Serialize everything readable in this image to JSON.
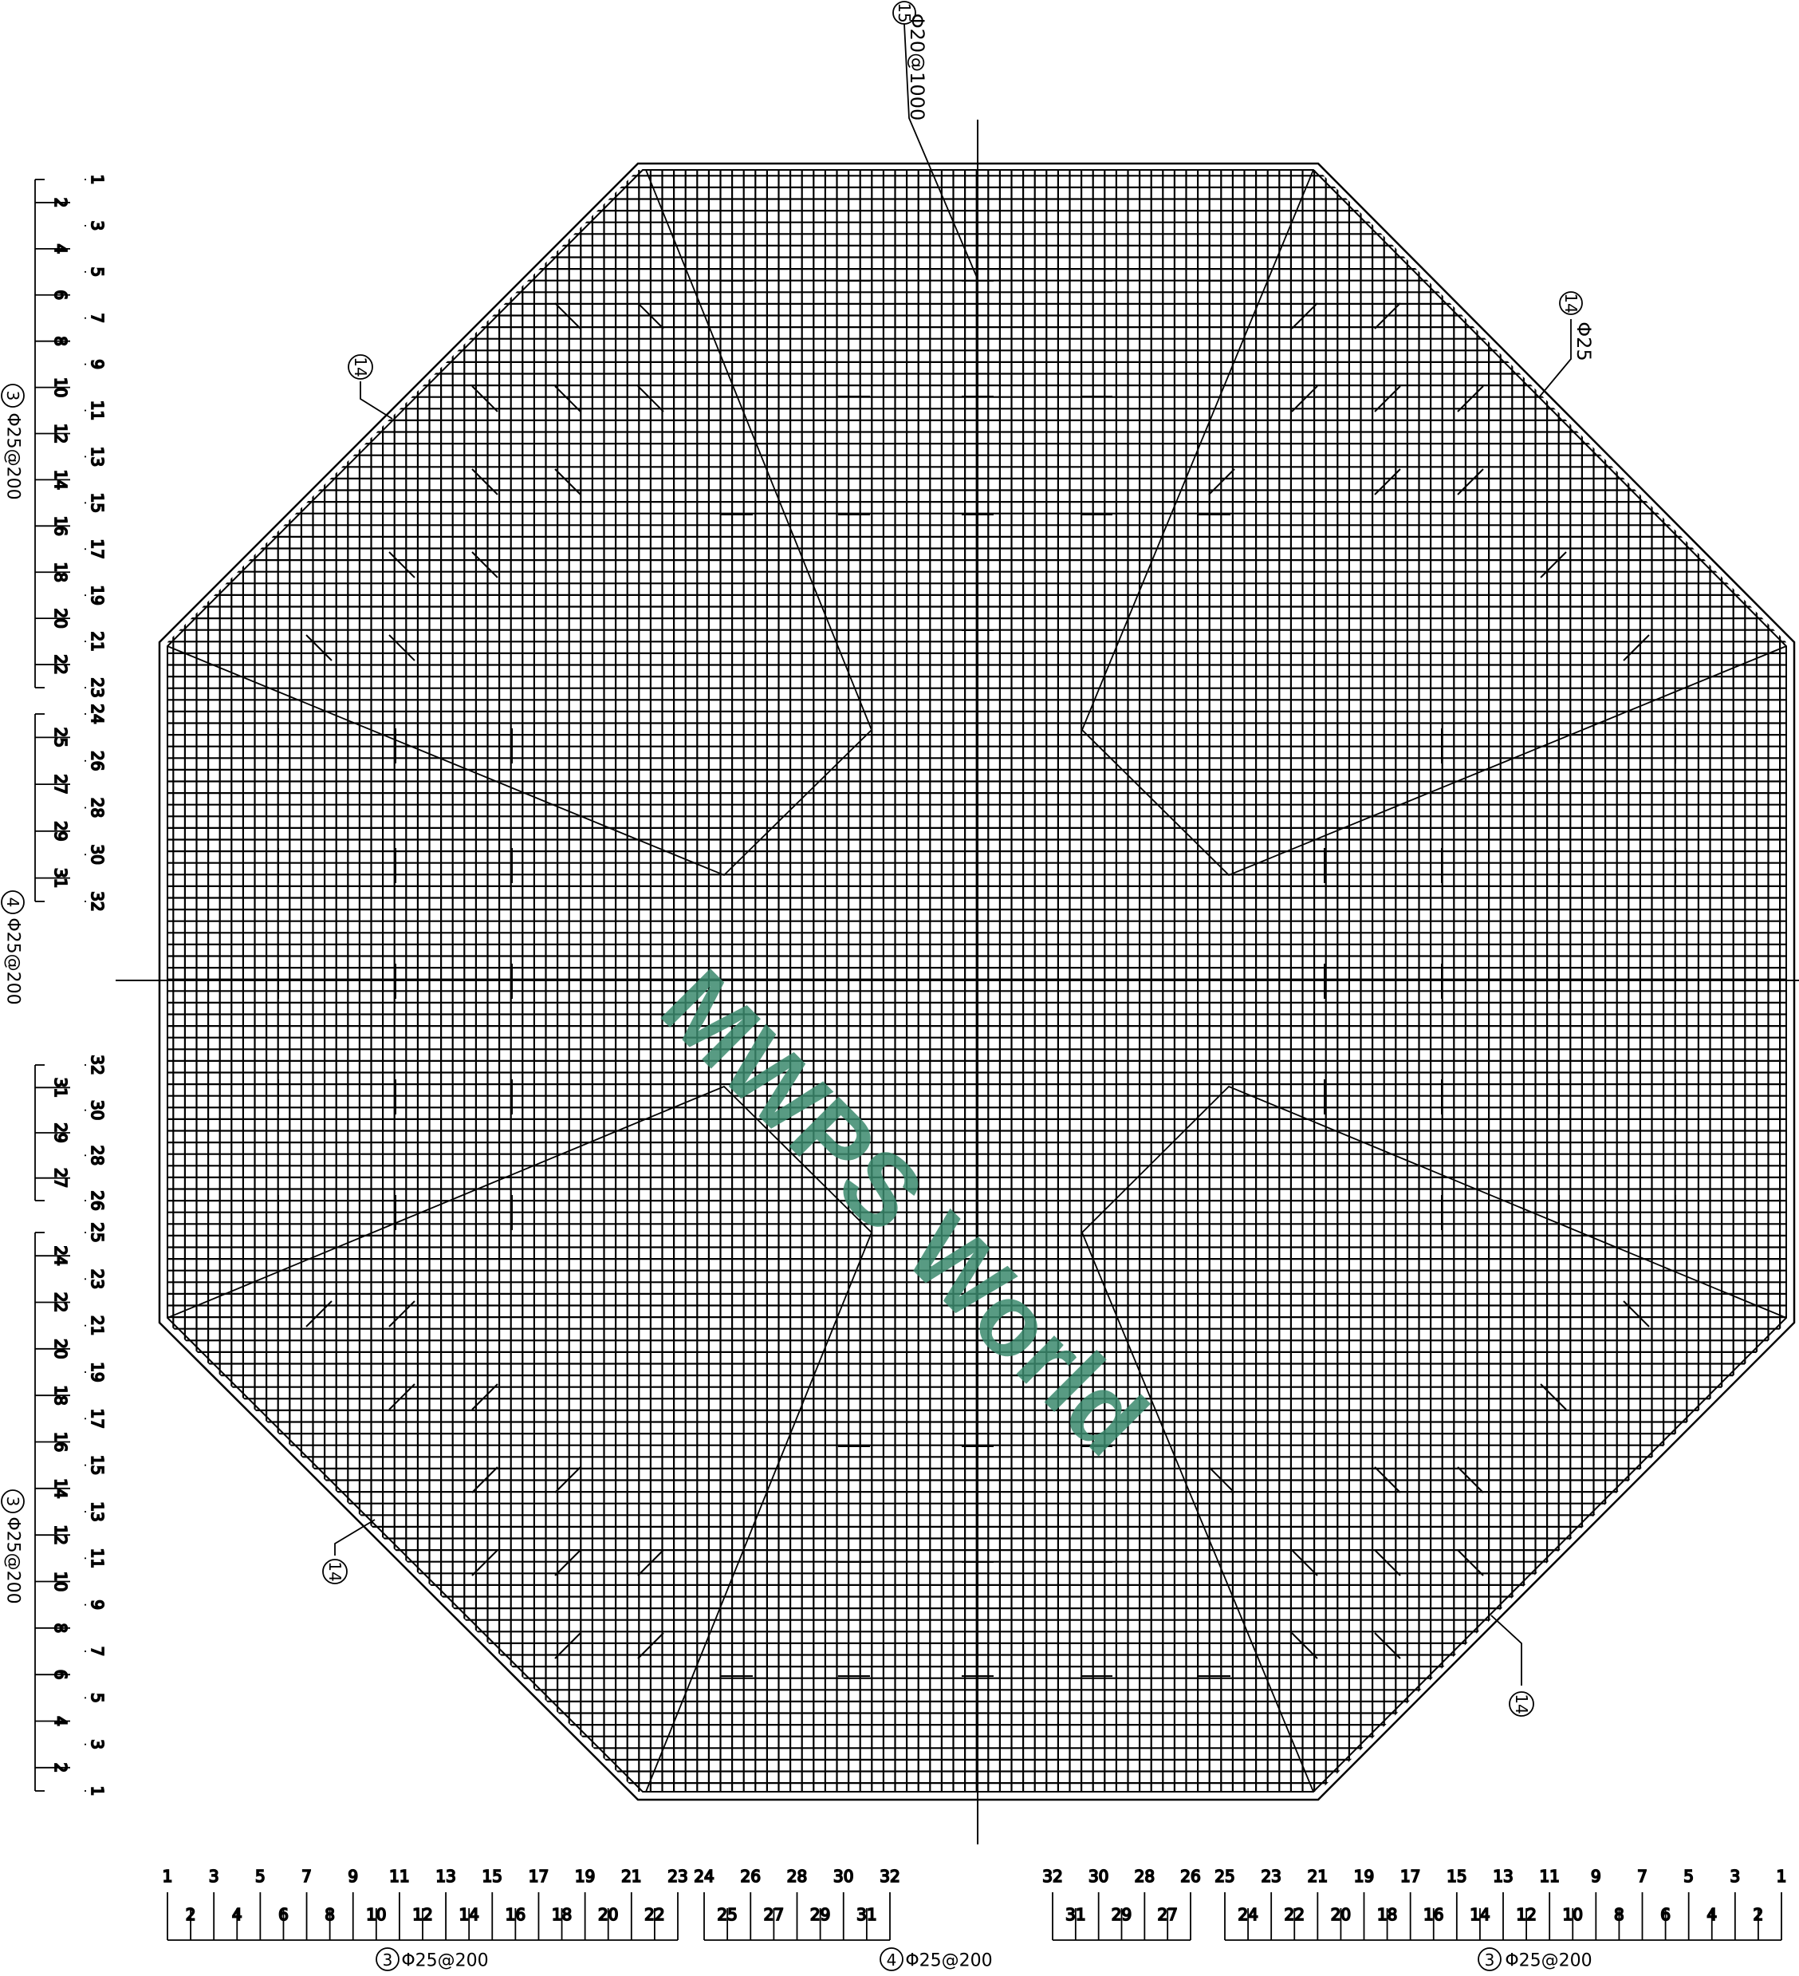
{
  "drawing": {
    "watermark": "MWPS World",
    "line_color": "#000000",
    "watermark_color": "#3b8a6d",
    "grid_spacing_label": "@200"
  },
  "callouts": {
    "top_mark": "15",
    "top_label": "Φ20@1000",
    "upper_right_mark": "14",
    "upper_right_label": "Φ25",
    "upper_left_mark": "14",
    "lower_left_mark": "14",
    "lower_right_mark": "14"
  },
  "schedules": {
    "left_top": {
      "mark": "3",
      "label": "Φ25@200"
    },
    "left_middle": {
      "mark": "4",
      "label": "Φ25@200"
    },
    "left_bottom": {
      "mark": "3",
      "label": "Φ25@200"
    },
    "bottom_left": {
      "mark": "3",
      "label": "Φ25@200"
    },
    "bottom_middle": {
      "mark": "4",
      "label": "Φ25@200"
    },
    "bottom_right": {
      "mark": "3",
      "label": "Φ25@200"
    }
  },
  "bar_numbers": {
    "left_top": [
      "1",
      "2",
      "3",
      "4",
      "5",
      "6",
      "7",
      "8",
      "9",
      "10",
      "11",
      "12",
      "13",
      "14",
      "15",
      "16",
      "17",
      "18",
      "19",
      "20",
      "21",
      "22",
      "23"
    ],
    "left_middle_upper": [
      "24",
      "25",
      "26",
      "27",
      "28",
      "29",
      "30",
      "31",
      "32"
    ],
    "left_middle_lower": [
      "32",
      "31",
      "30",
      "29",
      "28",
      "27",
      "26"
    ],
    "left_bottom": [
      "25",
      "24",
      "23",
      "22",
      "21",
      "20",
      "19",
      "18",
      "17",
      "16",
      "15",
      "14",
      "13",
      "12",
      "11",
      "10",
      "9",
      "8",
      "7",
      "6",
      "5",
      "4",
      "3",
      "2",
      "1"
    ],
    "bottom_left": [
      "1",
      "2",
      "3",
      "4",
      "5",
      "6",
      "7",
      "8",
      "9",
      "10",
      "11",
      "12",
      "13",
      "14",
      "15",
      "16",
      "17",
      "18",
      "19",
      "20",
      "21",
      "22",
      "23"
    ],
    "bottom_middle_left": [
      "24",
      "25",
      "26",
      "27",
      "28",
      "29",
      "30",
      "31",
      "32"
    ],
    "bottom_middle_right": [
      "32",
      "31",
      "30",
      "29",
      "28",
      "27",
      "26"
    ],
    "bottom_right": [
      "25",
      "24",
      "23",
      "22",
      "21",
      "20",
      "19",
      "18",
      "17",
      "16",
      "15",
      "14",
      "13",
      "12",
      "11",
      "10",
      "9",
      "8",
      "7",
      "6",
      "5",
      "4",
      "3",
      "2",
      "1"
    ]
  }
}
